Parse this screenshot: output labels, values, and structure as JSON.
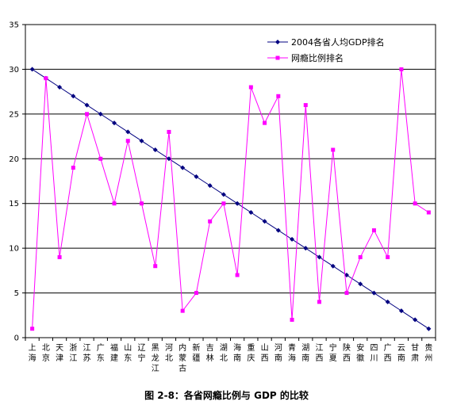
{
  "caption": "图 2-8：各省网瘾比例与 GDP 的比较",
  "colors": {
    "gdp": "#000080",
    "addiction": "#ff00ff",
    "grid": "#000000"
  },
  "chart_data": {
    "type": "line",
    "title": "",
    "xlabel": "",
    "ylabel": "",
    "ylim": [
      0,
      35
    ],
    "yticks": [
      0,
      5,
      10,
      15,
      20,
      25,
      30,
      35
    ],
    "grid": true,
    "legend_position": "top-right",
    "categories": [
      "上海",
      "北京",
      "天津",
      "浙江",
      "江苏",
      "广东",
      "福建",
      "山东",
      "辽宁",
      "黑龙江",
      "河北",
      "内蒙古",
      "新疆",
      "吉林",
      "湖北",
      "海南",
      "重庆",
      "山西",
      "河南",
      "青海",
      "湖南",
      "江西",
      "宁夏",
      "陕西",
      "安徽",
      "四川",
      "广西",
      "云南",
      "甘肃",
      "贵州"
    ],
    "series": [
      {
        "name": "2004各省人均GDP排名",
        "marker": "diamond",
        "values": [
          30,
          29,
          28,
          27,
          26,
          25,
          24,
          23,
          22,
          21,
          20,
          19,
          18,
          17,
          16,
          15,
          14,
          13,
          12,
          11,
          10,
          9,
          8,
          7,
          6,
          5,
          4,
          3,
          2,
          1
        ]
      },
      {
        "name": "网瘾比例排名",
        "marker": "square",
        "values": [
          1,
          29,
          9,
          19,
          25,
          20,
          15,
          22,
          15,
          8,
          23,
          3,
          5,
          13,
          15,
          7,
          28,
          24,
          27,
          2,
          26,
          4,
          21,
          5,
          9,
          12,
          9,
          30,
          15,
          14
        ]
      }
    ]
  }
}
